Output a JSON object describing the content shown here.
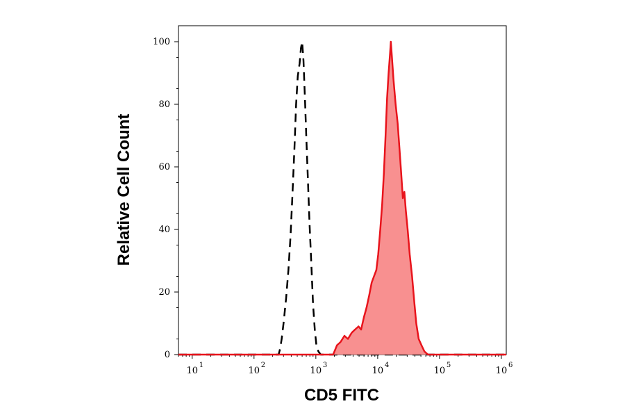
{
  "chart_data": {
    "type": "area",
    "xlabel": "CD5 FITC",
    "ylabel": "Relative Cell Count",
    "x_scale": "log",
    "xlim": [
      6,
      1200000
    ],
    "ylim": [
      0,
      100
    ],
    "grid": false,
    "x_ticks": [
      {
        "value": 10,
        "base": "10",
        "exp": "1"
      },
      {
        "value": 100,
        "base": "10",
        "exp": "2"
      },
      {
        "value": 1000,
        "base": "10",
        "exp": "3"
      },
      {
        "value": 10000,
        "base": "10",
        "exp": "4"
      },
      {
        "value": 100000,
        "base": "10",
        "exp": "5"
      },
      {
        "value": 1000000,
        "base": "10",
        "exp": "6"
      }
    ],
    "y_ticks": [
      0,
      20,
      40,
      60,
      80,
      100
    ],
    "series": [
      {
        "style": "dashed",
        "color": "#000000",
        "points": [
          [
            6,
            0
          ],
          [
            250,
            0
          ],
          [
            265,
            2
          ],
          [
            280,
            5
          ],
          [
            300,
            10
          ],
          [
            330,
            18
          ],
          [
            360,
            27
          ],
          [
            390,
            38
          ],
          [
            420,
            52
          ],
          [
            450,
            66
          ],
          [
            480,
            80
          ],
          [
            510,
            89
          ],
          [
            545,
            93
          ],
          [
            575,
            98
          ],
          [
            600,
            100
          ],
          [
            630,
            94
          ],
          [
            665,
            82
          ],
          [
            700,
            70
          ],
          [
            740,
            57
          ],
          [
            790,
            42
          ],
          [
            850,
            28
          ],
          [
            900,
            16
          ],
          [
            960,
            8
          ],
          [
            1020,
            3
          ],
          [
            1100,
            1
          ],
          [
            1200,
            0
          ],
          [
            1200000,
            0
          ]
        ]
      },
      {
        "style": "filled",
        "color": "#e8141c",
        "fill": "#f89090",
        "points": [
          [
            6,
            0
          ],
          [
            1900,
            0
          ],
          [
            2000,
            1
          ],
          [
            2200,
            3
          ],
          [
            2500,
            4
          ],
          [
            2900,
            6
          ],
          [
            3300,
            5
          ],
          [
            3800,
            7
          ],
          [
            4300,
            8
          ],
          [
            4900,
            9
          ],
          [
            5400,
            8
          ],
          [
            6000,
            12
          ],
          [
            6600,
            15
          ],
          [
            7300,
            19
          ],
          [
            8000,
            23
          ],
          [
            8700,
            25
          ],
          [
            9500,
            27
          ],
          [
            10200,
            32
          ],
          [
            11000,
            40
          ],
          [
            11800,
            48
          ],
          [
            12600,
            58
          ],
          [
            13400,
            70
          ],
          [
            14200,
            82
          ],
          [
            15000,
            90
          ],
          [
            15800,
            96
          ],
          [
            16300,
            100
          ],
          [
            17000,
            95
          ],
          [
            18000,
            88
          ],
          [
            19500,
            80
          ],
          [
            21000,
            74
          ],
          [
            22500,
            66
          ],
          [
            24000,
            58
          ],
          [
            25500,
            50
          ],
          [
            27000,
            52
          ],
          [
            28500,
            46
          ],
          [
            30500,
            40
          ],
          [
            33000,
            32
          ],
          [
            36000,
            25
          ],
          [
            39000,
            17
          ],
          [
            42000,
            10
          ],
          [
            46000,
            5
          ],
          [
            51000,
            3
          ],
          [
            57000,
            1
          ],
          [
            65000,
            0
          ],
          [
            1200000,
            0
          ]
        ]
      }
    ]
  }
}
